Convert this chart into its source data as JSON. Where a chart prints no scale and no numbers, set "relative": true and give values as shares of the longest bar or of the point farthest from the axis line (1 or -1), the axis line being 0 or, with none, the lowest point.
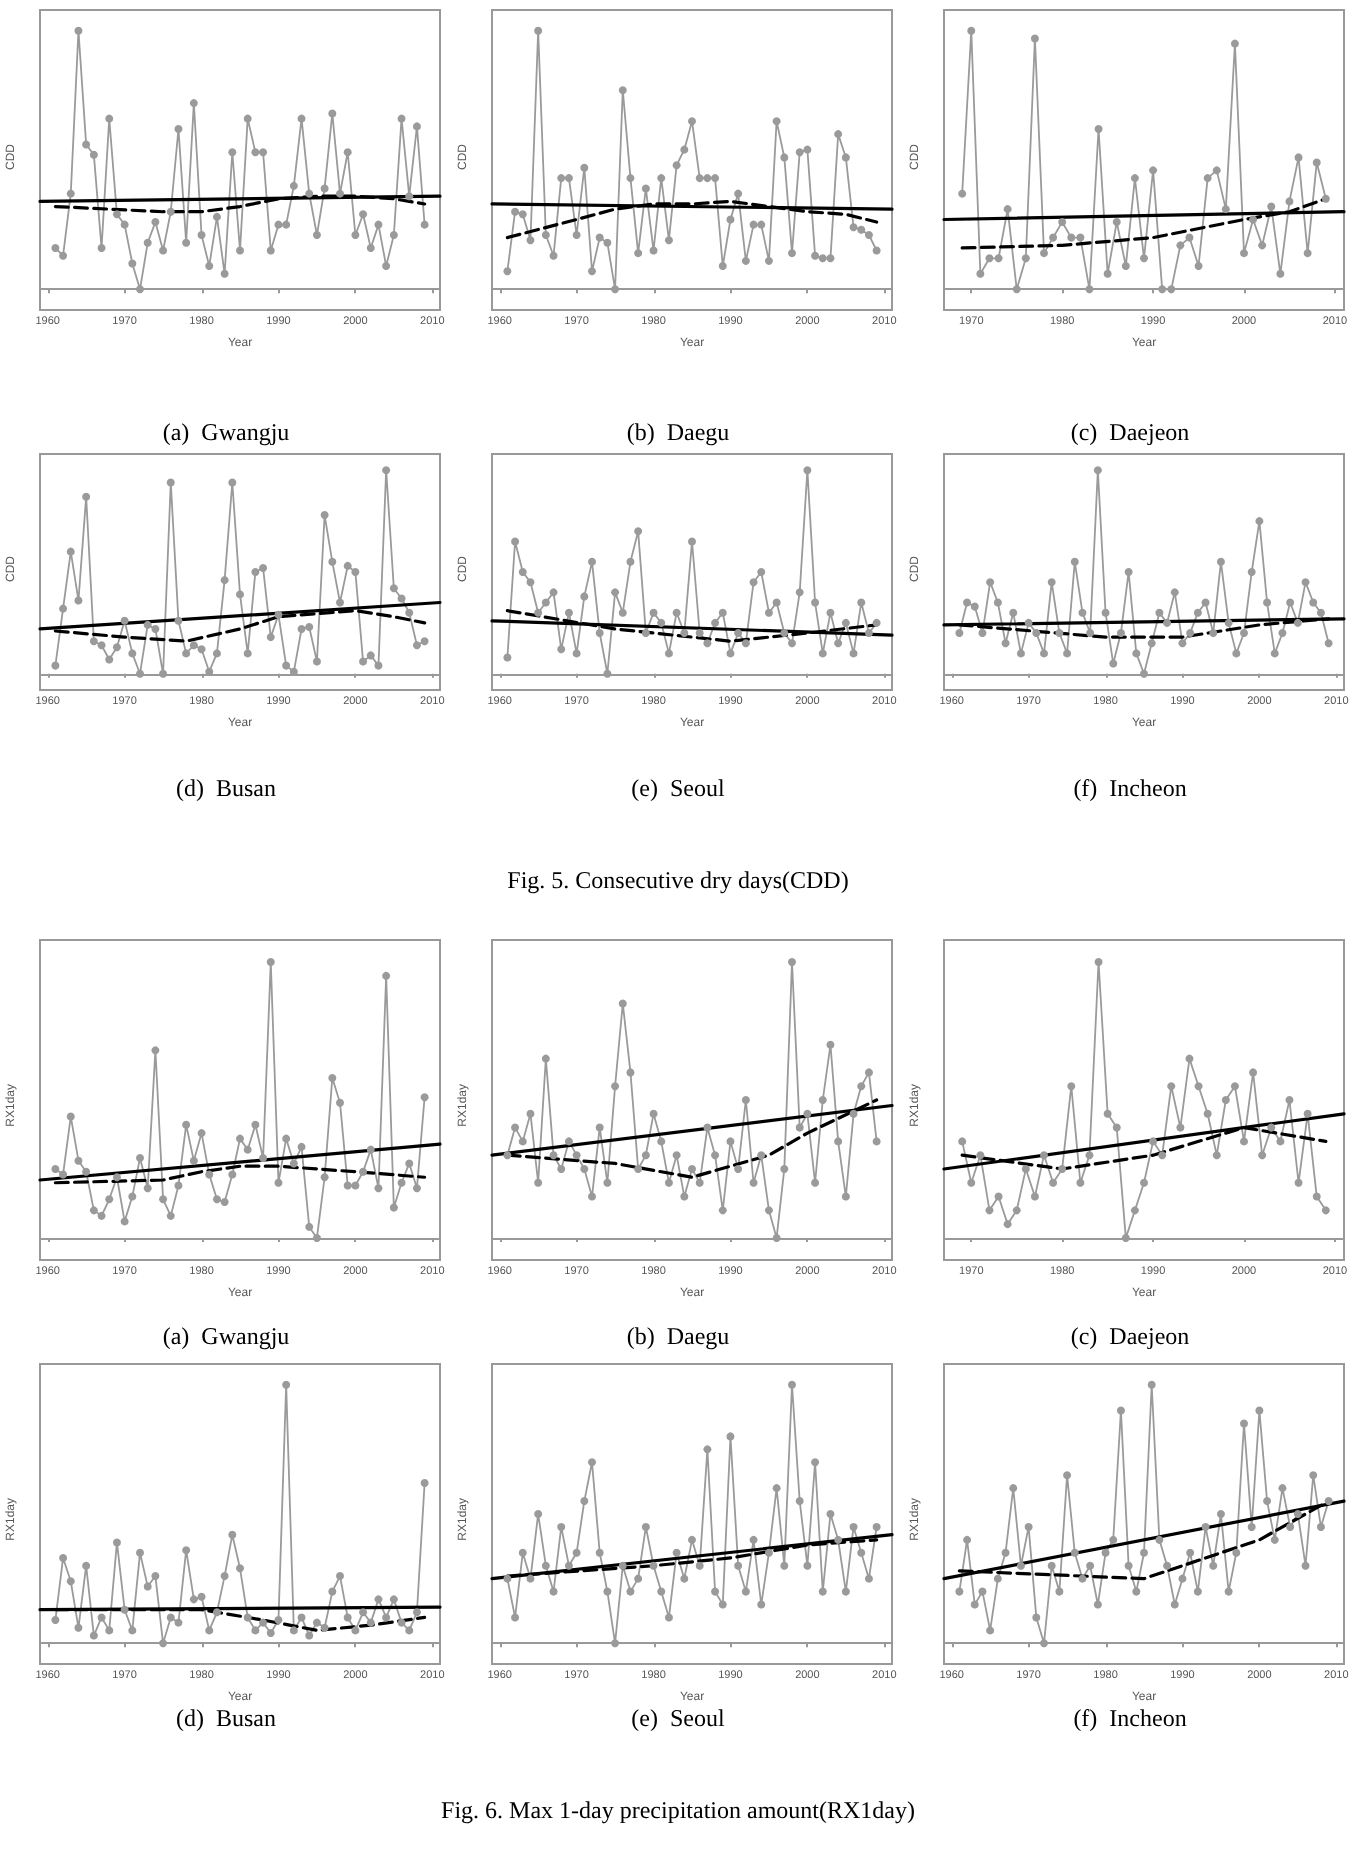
{
  "chart_data": [
    {
      "type": "line",
      "relative": true,
      "title": "(a)  Gwangju",
      "xlabel": "Year",
      "ylabel": "CDD",
      "xlim": [
        1959,
        2011
      ],
      "xticks": [
        1960,
        1970,
        1980,
        1990,
        2000,
        2010
      ],
      "x": [
        1961,
        1962,
        1963,
        1964,
        1965,
        1966,
        1967,
        1968,
        1969,
        1970,
        1971,
        1972,
        1973,
        1974,
        1975,
        1976,
        1977,
        1978,
        1979,
        1980,
        1981,
        1982,
        1983,
        1984,
        1985,
        1986,
        1987,
        1988,
        1989,
        1990,
        1991,
        1992,
        1993,
        1994,
        1995,
        1996,
        1997,
        1998,
        1999,
        2000,
        2001,
        2002,
        2003,
        2004,
        2005,
        2006,
        2007,
        2008,
        2009
      ],
      "series": [
        {
          "color": "#9a9a9a",
          "marker": "circle",
          "line_style": "solid",
          "values": [
            0.16,
            0.13,
            0.37,
            1,
            0.56,
            0.52,
            0.16,
            0.66,
            0.29,
            0.25,
            0.1,
            0,
            0.18,
            0.26,
            0.15,
            0.3,
            0.62,
            0.18,
            0.72,
            0.21,
            0.09,
            0.28,
            0.06,
            0.53,
            0.15,
            0.66,
            0.53,
            0.53,
            0.15,
            0.25,
            0.25,
            0.4,
            0.66,
            0.37,
            0.21,
            0.39,
            0.68,
            0.37,
            0.53,
            0.21,
            0.29,
            0.16,
            0.25,
            0.09,
            0.21,
            0.66,
            0.36,
            0.63,
            0.25
          ]
        },
        {
          "color": "#000000",
          "marker": "none",
          "line_style": "solid",
          "x": [
            1959,
            2011
          ],
          "values": [
            0.34,
            0.36
          ]
        },
        {
          "color": "#000000",
          "marker": "none",
          "line_style": "dashed",
          "x": [
            1961,
            1975,
            1980,
            1985,
            1990,
            1995,
            2000,
            2005,
            2009
          ],
          "values": [
            0.32,
            0.3,
            0.3,
            0.32,
            0.35,
            0.36,
            0.36,
            0.35,
            0.33
          ]
        }
      ]
    },
    {
      "type": "line",
      "relative": true,
      "title": "(b)  Daegu",
      "xlabel": "Year",
      "ylabel": "CDD",
      "xlim": [
        1959,
        2011
      ],
      "xticks": [
        1960,
        1970,
        1980,
        1990,
        2000,
        2010
      ],
      "x": [
        1961,
        1962,
        1963,
        1964,
        1965,
        1966,
        1967,
        1968,
        1969,
        1970,
        1971,
        1972,
        1973,
        1974,
        1975,
        1976,
        1977,
        1978,
        1979,
        1980,
        1981,
        1982,
        1983,
        1984,
        1985,
        1986,
        1987,
        1988,
        1989,
        1990,
        1991,
        1992,
        1993,
        1994,
        1995,
        1996,
        1997,
        1998,
        1999,
        2000,
        2001,
        2002,
        2003,
        2004,
        2005,
        2006,
        2007,
        2008,
        2009
      ],
      "series": [
        {
          "color": "#9a9a9a",
          "marker": "circle",
          "line_style": "solid",
          "values": [
            0.07,
            0.3,
            0.29,
            0.19,
            1,
            0.21,
            0.13,
            0.43,
            0.43,
            0.21,
            0.47,
            0.07,
            0.2,
            0.18,
            0,
            0.77,
            0.43,
            0.14,
            0.39,
            0.15,
            0.43,
            0.19,
            0.48,
            0.54,
            0.65,
            0.43,
            0.43,
            0.43,
            0.09,
            0.27,
            0.37,
            0.11,
            0.25,
            0.25,
            0.11,
            0.65,
            0.51,
            0.14,
            0.53,
            0.54,
            0.13,
            0.12,
            0.12,
            0.6,
            0.51,
            0.24,
            0.23,
            0.21,
            0.15
          ]
        },
        {
          "color": "#000000",
          "marker": "none",
          "line_style": "solid",
          "x": [
            1959,
            2011
          ],
          "values": [
            0.33,
            0.31
          ]
        },
        {
          "color": "#000000",
          "marker": "none",
          "line_style": "dashed",
          "x": [
            1961,
            1970,
            1975,
            1980,
            1985,
            1990,
            1995,
            2000,
            2005,
            2009
          ],
          "values": [
            0.2,
            0.27,
            0.31,
            0.33,
            0.33,
            0.34,
            0.32,
            0.3,
            0.29,
            0.26
          ]
        }
      ]
    },
    {
      "type": "line",
      "relative": true,
      "title": "(c)  Daejeon",
      "xlabel": "Year",
      "ylabel": "CDD",
      "xlim": [
        1967,
        2011
      ],
      "xticks": [
        1970,
        1980,
        1990,
        2000,
        2010
      ],
      "x": [
        1969,
        1970,
        1971,
        1972,
        1973,
        1974,
        1975,
        1976,
        1977,
        1978,
        1979,
        1980,
        1981,
        1982,
        1983,
        1984,
        1985,
        1986,
        1987,
        1988,
        1989,
        1990,
        1991,
        1992,
        1993,
        1994,
        1995,
        1996,
        1997,
        1998,
        1999,
        2000,
        2001,
        2002,
        2003,
        2004,
        2005,
        2006,
        2007,
        2008,
        2009
      ],
      "series": [
        {
          "color": "#9a9a9a",
          "marker": "circle",
          "line_style": "solid",
          "values": [
            0.37,
            1,
            0.06,
            0.12,
            0.12,
            0.31,
            0,
            0.12,
            0.97,
            0.14,
            0.2,
            0.26,
            0.2,
            0.2,
            0,
            0.62,
            0.06,
            0.26,
            0.09,
            0.43,
            0.12,
            0.46,
            0,
            0,
            0.17,
            0.2,
            0.09,
            0.43,
            0.46,
            0.31,
            0.95,
            0.14,
            0.27,
            0.17,
            0.32,
            0.06,
            0.34,
            0.51,
            0.14,
            0.49,
            0.35
          ]
        },
        {
          "color": "#000000",
          "marker": "none",
          "line_style": "solid",
          "x": [
            1967,
            2011
          ],
          "values": [
            0.27,
            0.3
          ]
        },
        {
          "color": "#000000",
          "marker": "none",
          "line_style": "dashed",
          "x": [
            1969,
            1980,
            1990,
            2000,
            2005,
            2009
          ],
          "values": [
            0.16,
            0.17,
            0.2,
            0.27,
            0.3,
            0.35
          ]
        }
      ]
    },
    {
      "type": "line",
      "relative": true,
      "title": "(d)  Busan",
      "xlabel": "Year",
      "ylabel": "CDD",
      "xlim": [
        1959,
        2011
      ],
      "xticks": [
        1960,
        1970,
        1980,
        1990,
        2000,
        2010
      ],
      "x": [
        1961,
        1962,
        1963,
        1964,
        1965,
        1966,
        1967,
        1968,
        1969,
        1970,
        1971,
        1972,
        1973,
        1974,
        1975,
        1976,
        1977,
        1978,
        1979,
        1980,
        1981,
        1982,
        1983,
        1984,
        1985,
        1986,
        1987,
        1988,
        1989,
        1990,
        1991,
        1992,
        1993,
        1994,
        1995,
        1996,
        1997,
        1998,
        1999,
        2000,
        2001,
        2002,
        2003,
        2004,
        2005,
        2006,
        2007,
        2008,
        2009
      ],
      "series": [
        {
          "color": "#9a9a9a",
          "marker": "circle",
          "line_style": "solid",
          "values": [
            0.04,
            0.32,
            0.6,
            0.36,
            0.87,
            0.16,
            0.14,
            0.07,
            0.13,
            0.26,
            0.1,
            0,
            0.24,
            0.22,
            0,
            0.94,
            0.26,
            0.1,
            0.14,
            0.12,
            0.01,
            0.1,
            0.46,
            0.94,
            0.39,
            0.1,
            0.5,
            0.52,
            0.18,
            0.29,
            0.04,
            0.01,
            0.22,
            0.23,
            0.06,
            0.78,
            0.55,
            0.35,
            0.53,
            0.5,
            0.06,
            0.09,
            0.04,
            1,
            0.42,
            0.37,
            0.3,
            0.14,
            0.16
          ]
        },
        {
          "color": "#000000",
          "marker": "none",
          "line_style": "solid",
          "x": [
            1959,
            2011
          ],
          "values": [
            0.22,
            0.35
          ]
        },
        {
          "color": "#000000",
          "marker": "none",
          "line_style": "dashed",
          "x": [
            1961,
            1970,
            1978,
            1985,
            1990,
            2000,
            2005,
            2009
          ],
          "values": [
            0.21,
            0.18,
            0.16,
            0.22,
            0.28,
            0.31,
            0.28,
            0.25
          ]
        }
      ]
    },
    {
      "type": "line",
      "relative": true,
      "title": "(e)  Seoul",
      "xlabel": "Year",
      "ylabel": "CDD",
      "xlim": [
        1959,
        2011
      ],
      "xticks": [
        1960,
        1970,
        1980,
        1990,
        2000,
        2010
      ],
      "annotations": [
        "Fig. 5. Consecutive dry days(CDD)"
      ],
      "x": [
        1961,
        1962,
        1963,
        1964,
        1965,
        1966,
        1967,
        1968,
        1969,
        1970,
        1971,
        1972,
        1973,
        1974,
        1975,
        1976,
        1977,
        1978,
        1979,
        1980,
        1981,
        1982,
        1983,
        1984,
        1985,
        1986,
        1987,
        1988,
        1989,
        1990,
        1991,
        1992,
        1993,
        1994,
        1995,
        1996,
        1997,
        1998,
        1999,
        2000,
        2001,
        2002,
        2003,
        2004,
        2005,
        2006,
        2007,
        2008,
        2009
      ],
      "series": [
        {
          "color": "#9a9a9a",
          "marker": "circle",
          "line_style": "solid",
          "values": [
            0.08,
            0.65,
            0.5,
            0.45,
            0.3,
            0.35,
            0.4,
            0.12,
            0.3,
            0.1,
            0.38,
            0.55,
            0.2,
            0,
            0.4,
            0.3,
            0.55,
            0.7,
            0.2,
            0.3,
            0.25,
            0.1,
            0.3,
            0.2,
            0.65,
            0.2,
            0.15,
            0.25,
            0.3,
            0.1,
            0.2,
            0.15,
            0.45,
            0.5,
            0.3,
            0.35,
            0.2,
            0.15,
            0.4,
            1,
            0.35,
            0.1,
            0.3,
            0.15,
            0.25,
            0.1,
            0.35,
            0.2,
            0.25
          ]
        },
        {
          "color": "#000000",
          "marker": "none",
          "line_style": "solid",
          "x": [
            1959,
            2011
          ],
          "values": [
            0.26,
            0.19
          ]
        },
        {
          "color": "#000000",
          "marker": "none",
          "line_style": "dashed",
          "x": [
            1961,
            1975,
            1990,
            2000,
            2009
          ],
          "values": [
            0.31,
            0.22,
            0.16,
            0.2,
            0.24
          ]
        }
      ]
    },
    {
      "type": "line",
      "relative": true,
      "title": "(f)  Incheon",
      "xlabel": "Year",
      "ylabel": "CDD",
      "xlim": [
        1959,
        2011
      ],
      "xticks": [
        1960,
        1970,
        1980,
        1990,
        2000,
        2010
      ],
      "x": [
        1961,
        1962,
        1963,
        1964,
        1965,
        1966,
        1967,
        1968,
        1969,
        1970,
        1971,
        1972,
        1973,
        1974,
        1975,
        1976,
        1977,
        1978,
        1979,
        1980,
        1981,
        1982,
        1983,
        1984,
        1985,
        1986,
        1987,
        1988,
        1989,
        1990,
        1991,
        1992,
        1993,
        1994,
        1995,
        1996,
        1997,
        1998,
        1999,
        2000,
        2001,
        2002,
        2003,
        2004,
        2005,
        2006,
        2007,
        2008,
        2009
      ],
      "series": [
        {
          "color": "#9a9a9a",
          "marker": "circle",
          "line_style": "solid",
          "values": [
            0.2,
            0.35,
            0.33,
            0.2,
            0.45,
            0.35,
            0.15,
            0.3,
            0.1,
            0.25,
            0.2,
            0.1,
            0.45,
            0.2,
            0.1,
            0.55,
            0.3,
            0.2,
            1,
            0.3,
            0.05,
            0.2,
            0.5,
            0.1,
            0,
            0.15,
            0.3,
            0.25,
            0.4,
            0.15,
            0.2,
            0.3,
            0.35,
            0.2,
            0.55,
            0.25,
            0.1,
            0.2,
            0.5,
            0.75,
            0.35,
            0.1,
            0.2,
            0.35,
            0.25,
            0.45,
            0.35,
            0.3,
            0.15
          ]
        },
        {
          "color": "#000000",
          "marker": "none",
          "line_style": "solid",
          "x": [
            1959,
            2011
          ],
          "values": [
            0.24,
            0.27
          ]
        },
        {
          "color": "#000000",
          "marker": "none",
          "line_style": "dashed",
          "x": [
            1961,
            1980,
            1990,
            2000,
            2009
          ],
          "values": [
            0.24,
            0.18,
            0.18,
            0.24,
            0.27
          ]
        }
      ]
    },
    {
      "type": "line",
      "relative": true,
      "title": "(a)  Gwangju",
      "xlabel": "Year",
      "ylabel": "RX1day",
      "xlim": [
        1959,
        2011
      ],
      "xticks": [
        1960,
        1970,
        1980,
        1990,
        2000,
        2010
      ],
      "x": [
        1961,
        1962,
        1963,
        1964,
        1965,
        1966,
        1967,
        1968,
        1969,
        1970,
        1971,
        1972,
        1973,
        1974,
        1975,
        1976,
        1977,
        1978,
        1979,
        1980,
        1981,
        1982,
        1983,
        1984,
        1985,
        1986,
        1987,
        1988,
        1989,
        1990,
        1991,
        1992,
        1993,
        1994,
        1995,
        1996,
        1997,
        1998,
        1999,
        2000,
        2001,
        2002,
        2003,
        2004,
        2005,
        2006,
        2007,
        2008,
        2009
      ],
      "series": [
        {
          "color": "#9a9a9a",
          "marker": "circle",
          "line_style": "solid",
          "values": [
            0.25,
            0.23,
            0.44,
            0.28,
            0.24,
            0.1,
            0.08,
            0.14,
            0.22,
            0.06,
            0.15,
            0.29,
            0.18,
            0.68,
            0.14,
            0.08,
            0.19,
            0.41,
            0.28,
            0.38,
            0.23,
            0.14,
            0.13,
            0.23,
            0.36,
            0.32,
            0.41,
            0.29,
            1,
            0.2,
            0.36,
            0.27,
            0.33,
            0.04,
            0,
            0.22,
            0.58,
            0.49,
            0.19,
            0.19,
            0.24,
            0.32,
            0.18,
            0.95,
            0.11,
            0.2,
            0.27,
            0.18,
            0.51
          ]
        },
        {
          "color": "#000000",
          "marker": "none",
          "line_style": "solid",
          "x": [
            1959,
            2011
          ],
          "values": [
            0.21,
            0.34
          ]
        },
        {
          "color": "#000000",
          "marker": "none",
          "line_style": "dashed",
          "x": [
            1961,
            1975,
            1980,
            1985,
            1990,
            1995,
            2000,
            2009
          ],
          "values": [
            0.2,
            0.21,
            0.24,
            0.26,
            0.26,
            0.25,
            0.24,
            0.22
          ]
        }
      ]
    },
    {
      "type": "line",
      "relative": true,
      "title": "(b)  Daegu",
      "xlabel": "Year",
      "ylabel": "RX1day",
      "xlim": [
        1959,
        2011
      ],
      "xticks": [
        1960,
        1970,
        1980,
        1990,
        2000,
        2010
      ],
      "x": [
        1961,
        1962,
        1963,
        1964,
        1965,
        1966,
        1967,
        1968,
        1969,
        1970,
        1971,
        1972,
        1973,
        1974,
        1975,
        1976,
        1977,
        1978,
        1979,
        1980,
        1981,
        1982,
        1983,
        1984,
        1985,
        1986,
        1987,
        1988,
        1989,
        1990,
        1991,
        1992,
        1993,
        1994,
        1995,
        1996,
        1997,
        1998,
        1999,
        2000,
        2001,
        2002,
        2003,
        2004,
        2005,
        2006,
        2007,
        2008,
        2009
      ],
      "series": [
        {
          "color": "#9a9a9a",
          "marker": "circle",
          "line_style": "solid",
          "values": [
            0.3,
            0.4,
            0.35,
            0.45,
            0.2,
            0.65,
            0.3,
            0.25,
            0.35,
            0.3,
            0.25,
            0.15,
            0.4,
            0.2,
            0.55,
            0.85,
            0.6,
            0.25,
            0.3,
            0.45,
            0.35,
            0.2,
            0.3,
            0.15,
            0.25,
            0.2,
            0.4,
            0.3,
            0.1,
            0.35,
            0.25,
            0.5,
            0.2,
            0.3,
            0.1,
            0,
            0.25,
            1,
            0.4,
            0.45,
            0.2,
            0.5,
            0.7,
            0.35,
            0.15,
            0.45,
            0.55,
            0.6,
            0.35
          ]
        },
        {
          "color": "#000000",
          "marker": "none",
          "line_style": "solid",
          "x": [
            1959,
            2011
          ],
          "values": [
            0.3,
            0.48
          ]
        },
        {
          "color": "#000000",
          "marker": "none",
          "line_style": "dashed",
          "x": [
            1961,
            1975,
            1985,
            1995,
            2000,
            2009
          ],
          "values": [
            0.3,
            0.27,
            0.22,
            0.3,
            0.38,
            0.5
          ]
        }
      ]
    },
    {
      "type": "line",
      "relative": true,
      "title": "(c)  Daejeon",
      "xlabel": "Year",
      "ylabel": "RX1day",
      "xlim": [
        1967,
        2011
      ],
      "xticks": [
        1970,
        1980,
        1990,
        2000,
        2010
      ],
      "x": [
        1969,
        1970,
        1971,
        1972,
        1973,
        1974,
        1975,
        1976,
        1977,
        1978,
        1979,
        1980,
        1981,
        1982,
        1983,
        1984,
        1985,
        1986,
        1987,
        1988,
        1989,
        1990,
        1991,
        1992,
        1993,
        1994,
        1995,
        1996,
        1997,
        1998,
        1999,
        2000,
        2001,
        2002,
        2003,
        2004,
        2005,
        2006,
        2007,
        2008,
        2009
      ],
      "series": [
        {
          "color": "#9a9a9a",
          "marker": "circle",
          "line_style": "solid",
          "values": [
            0.35,
            0.2,
            0.3,
            0.1,
            0.15,
            0.05,
            0.1,
            0.25,
            0.15,
            0.3,
            0.2,
            0.25,
            0.55,
            0.2,
            0.3,
            1,
            0.45,
            0.4,
            0,
            0.1,
            0.2,
            0.35,
            0.3,
            0.55,
            0.4,
            0.65,
            0.55,
            0.45,
            0.3,
            0.5,
            0.55,
            0.35,
            0.6,
            0.3,
            0.4,
            0.35,
            0.5,
            0.2,
            0.45,
            0.15,
            0.1
          ]
        },
        {
          "color": "#000000",
          "marker": "none",
          "line_style": "solid",
          "x": [
            1967,
            2011
          ],
          "values": [
            0.25,
            0.45
          ]
        },
        {
          "color": "#000000",
          "marker": "none",
          "line_style": "dashed",
          "x": [
            1969,
            1980,
            1990,
            2000,
            2009
          ],
          "values": [
            0.3,
            0.25,
            0.3,
            0.4,
            0.35
          ]
        }
      ]
    },
    {
      "type": "line",
      "relative": true,
      "title": "(d)  Busan",
      "xlabel": "Year",
      "ylabel": "RX1day",
      "xlim": [
        1959,
        2011
      ],
      "xticks": [
        1960,
        1970,
        1980,
        1990,
        2000,
        2010
      ],
      "x": [
        1961,
        1962,
        1963,
        1964,
        1965,
        1966,
        1967,
        1968,
        1969,
        1970,
        1971,
        1972,
        1973,
        1974,
        1975,
        1976,
        1977,
        1978,
        1979,
        1980,
        1981,
        1982,
        1983,
        1984,
        1985,
        1986,
        1987,
        1988,
        1989,
        1990,
        1991,
        1992,
        1993,
        1994,
        1995,
        1996,
        1997,
        1998,
        1999,
        2000,
        2001,
        2002,
        2003,
        2004,
        2005,
        2006,
        2007,
        2008,
        2009
      ],
      "series": [
        {
          "color": "#9a9a9a",
          "marker": "circle",
          "line_style": "solid",
          "values": [
            0.09,
            0.33,
            0.24,
            0.06,
            0.3,
            0.03,
            0.1,
            0.05,
            0.39,
            0.13,
            0.05,
            0.35,
            0.22,
            0.26,
            0,
            0.1,
            0.08,
            0.36,
            0.17,
            0.18,
            0.05,
            0.12,
            0.26,
            0.42,
            0.29,
            0.1,
            0.05,
            0.08,
            0.04,
            0.09,
            1,
            0.05,
            0.1,
            0.03,
            0.08,
            0.06,
            0.2,
            0.26,
            0.1,
            0.05,
            0.12,
            0.08,
            0.17,
            0.1,
            0.17,
            0.08,
            0.05,
            0.12,
            0.62
          ]
        },
        {
          "color": "#000000",
          "marker": "none",
          "line_style": "solid",
          "x": [
            1959,
            2011
          ],
          "values": [
            0.13,
            0.14
          ]
        },
        {
          "color": "#000000",
          "marker": "none",
          "line_style": "dashed",
          "x": [
            1961,
            1980,
            1988,
            1995,
            2002,
            2009
          ],
          "values": [
            0.13,
            0.13,
            0.09,
            0.05,
            0.07,
            0.1
          ]
        }
      ]
    },
    {
      "type": "line",
      "relative": true,
      "title": "(e)  Seoul",
      "xlabel": "Year",
      "ylabel": "RX1day",
      "xlim": [
        1959,
        2011
      ],
      "xticks": [
        1960,
        1970,
        1980,
        1990,
        2000,
        2010
      ],
      "annotations": [
        "Fig. 6. Max 1-day precipitation amount(RX1day)"
      ],
      "x": [
        1961,
        1962,
        1963,
        1964,
        1965,
        1966,
        1967,
        1968,
        1969,
        1970,
        1971,
        1972,
        1973,
        1974,
        1975,
        1976,
        1977,
        1978,
        1979,
        1980,
        1981,
        1982,
        1983,
        1984,
        1985,
        1986,
        1987,
        1988,
        1989,
        1990,
        1991,
        1992,
        1993,
        1994,
        1995,
        1996,
        1997,
        1998,
        1999,
        2000,
        2001,
        2002,
        2003,
        2004,
        2005,
        2006,
        2007,
        2008,
        2009
      ],
      "series": [
        {
          "color": "#9a9a9a",
          "marker": "circle",
          "line_style": "solid",
          "values": [
            0.25,
            0.1,
            0.35,
            0.25,
            0.5,
            0.3,
            0.2,
            0.45,
            0.3,
            0.35,
            0.55,
            0.7,
            0.35,
            0.2,
            0,
            0.3,
            0.2,
            0.25,
            0.45,
            0.3,
            0.2,
            0.1,
            0.35,
            0.25,
            0.4,
            0.3,
            0.75,
            0.2,
            0.15,
            0.8,
            0.3,
            0.2,
            0.4,
            0.15,
            0.35,
            0.6,
            0.3,
            1,
            0.55,
            0.3,
            0.7,
            0.2,
            0.5,
            0.4,
            0.2,
            0.45,
            0.35,
            0.25,
            0.45
          ]
        },
        {
          "color": "#000000",
          "marker": "none",
          "line_style": "solid",
          "x": [
            1959,
            2011
          ],
          "values": [
            0.25,
            0.42
          ]
        },
        {
          "color": "#000000",
          "marker": "none",
          "line_style": "dashed",
          "x": [
            1961,
            1980,
            1990,
            2000,
            2009
          ],
          "values": [
            0.26,
            0.3,
            0.33,
            0.38,
            0.4
          ]
        }
      ]
    },
    {
      "type": "line",
      "relative": true,
      "title": "(f)  Incheon",
      "xlabel": "Year",
      "ylabel": "RX1day",
      "xlim": [
        1959,
        2011
      ],
      "xticks": [
        1960,
        1970,
        1980,
        1990,
        2000,
        2010
      ],
      "x": [
        1961,
        1962,
        1963,
        1964,
        1965,
        1966,
        1967,
        1968,
        1969,
        1970,
        1971,
        1972,
        1973,
        1974,
        1975,
        1976,
        1977,
        1978,
        1979,
        1980,
        1981,
        1982,
        1983,
        1984,
        1985,
        1986,
        1987,
        1988,
        1989,
        1990,
        1991,
        1992,
        1993,
        1994,
        1995,
        1996,
        1997,
        1998,
        1999,
        2000,
        2001,
        2002,
        2003,
        2004,
        2005,
        2006,
        2007,
        2008,
        2009
      ],
      "series": [
        {
          "color": "#9a9a9a",
          "marker": "circle",
          "line_style": "solid",
          "values": [
            0.2,
            0.4,
            0.15,
            0.2,
            0.05,
            0.25,
            0.35,
            0.6,
            0.3,
            0.45,
            0.1,
            0,
            0.3,
            0.2,
            0.65,
            0.35,
            0.25,
            0.3,
            0.15,
            0.35,
            0.4,
            0.9,
            0.3,
            0.2,
            0.35,
            1,
            0.4,
            0.3,
            0.15,
            0.25,
            0.35,
            0.2,
            0.45,
            0.3,
            0.5,
            0.2,
            0.35,
            0.85,
            0.45,
            0.9,
            0.55,
            0.4,
            0.6,
            0.45,
            0.5,
            0.3,
            0.65,
            0.45,
            0.55
          ]
        },
        {
          "color": "#000000",
          "marker": "none",
          "line_style": "solid",
          "x": [
            1959,
            2011
          ],
          "values": [
            0.25,
            0.55
          ]
        },
        {
          "color": "#000000",
          "marker": "none",
          "line_style": "dashed",
          "x": [
            1961,
            1985,
            2000,
            2009
          ],
          "values": [
            0.28,
            0.25,
            0.4,
            0.55
          ]
        }
      ]
    }
  ]
}
